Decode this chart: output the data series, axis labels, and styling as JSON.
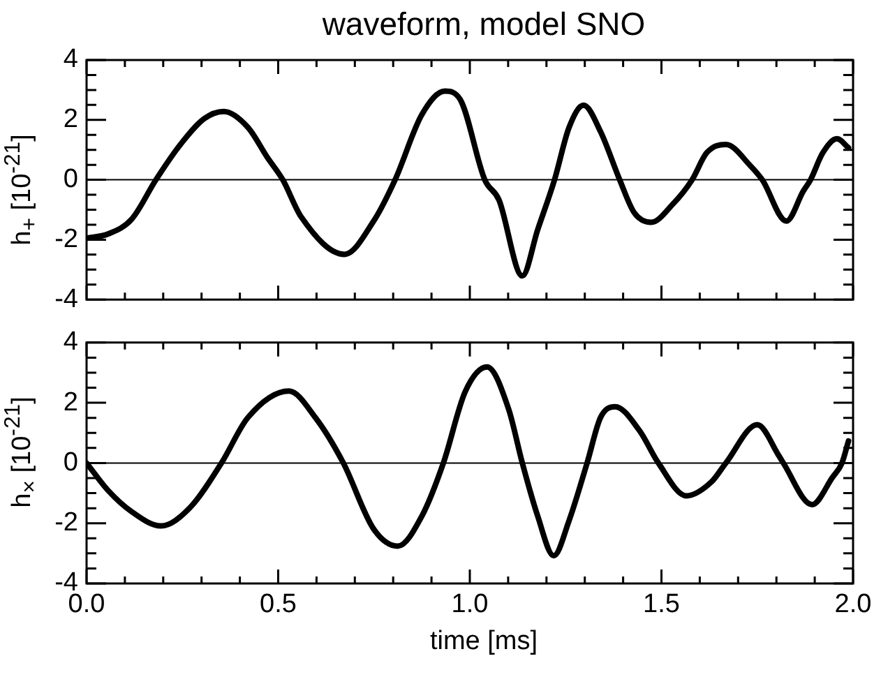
{
  "chart_data": [
    {
      "type": "line",
      "title": "waveform, model SNO",
      "ylabel": "h$_{+}$ [10$^{-21}$]",
      "tick_labels": "y",
      "x": [
        0,
        0.056,
        0.118,
        0.181,
        0.245,
        0.307,
        0.358,
        0.421,
        0.471,
        0.512,
        0.56,
        0.673,
        0.749,
        0.805,
        0.875,
        0.935,
        0.975,
        1.039,
        1.076,
        1.137,
        1.177,
        1.221,
        1.259,
        1.297,
        1.341,
        1.391,
        1.429,
        1.473,
        1.53,
        1.58,
        1.618,
        1.668,
        1.732,
        1.763,
        1.826,
        1.87,
        1.889,
        1.921,
        1.958,
        1.988
      ],
      "values": [
        -1.95,
        -1.81,
        -1.31,
        0,
        1.18,
        2.04,
        2.28,
        1.75,
        0.76,
        0,
        -1.24,
        -2.49,
        -1.38,
        0,
        2.18,
        2.96,
        2.68,
        0,
        -0.67,
        -3.21,
        -1.67,
        0,
        1.75,
        2.49,
        1.61,
        0,
        -1.1,
        -1.42,
        -0.81,
        0,
        0.9,
        1.18,
        0.47,
        0,
        -1.38,
        -0.38,
        0,
        0.9,
        1.37,
        1.07
      ],
      "color": "#000000",
      "grid": false,
      "legend": false,
      "xlim": [
        0,
        2
      ],
      "ylim": [
        -4,
        4
      ],
      "xticks": [
        0,
        {
          "value": 0.1,
          "label": null
        },
        {
          "value": 0.2,
          "label": null
        },
        {
          "value": 0.3,
          "label": null
        },
        {
          "value": 0.4,
          "label": null
        },
        0.5,
        {
          "value": 0.6,
          "label": null
        },
        {
          "value": 0.7,
          "label": null
        },
        {
          "value": 0.8,
          "label": null
        },
        {
          "value": 0.9,
          "label": null
        },
        1,
        {
          "value": 1.1,
          "label": null
        },
        {
          "value": 1.2,
          "label": null
        },
        {
          "value": 1.3,
          "label": null
        },
        {
          "value": 1.4,
          "label": null
        },
        1.5,
        {
          "value": 1.6,
          "label": null
        },
        {
          "value": 1.7,
          "label": null
        },
        {
          "value": 1.8,
          "label": null
        },
        {
          "value": 1.9,
          "label": null
        },
        2
      ],
      "yticks": [
        -4,
        {
          "value": -3.5,
          "label": null
        },
        {
          "value": -3,
          "label": null
        },
        {
          "value": -2.5,
          "label": null
        },
        -2,
        {
          "value": -1.5,
          "label": null
        },
        {
          "value": -1,
          "label": null
        },
        {
          "value": -0.5,
          "label": null
        },
        0,
        {
          "value": 0.5,
          "label": null
        },
        {
          "value": 1,
          "label": null
        },
        {
          "value": 1.5,
          "label": null
        },
        2,
        {
          "value": 2.5,
          "label": null
        },
        {
          "value": 3,
          "label": null
        },
        {
          "value": 3.5,
          "label": null
        },
        4
      ],
      "ref_lines": [
        {
          "axis": "y",
          "value": 0
        }
      ]
    },
    {
      "type": "line",
      "xlabel": "time [ms]",
      "ylabel": "h$_{×}$ [10$^{-21}$]",
      "x": [
        0,
        0.056,
        0.118,
        0.194,
        0.27,
        0.352,
        0.421,
        0.528,
        0.597,
        0.67,
        0.749,
        0.812,
        0.875,
        0.931,
        0.988,
        1.045,
        1.101,
        1.137,
        1.177,
        1.219,
        1.259,
        1.306,
        1.341,
        1.379,
        1.442,
        1.492,
        1.565,
        1.631,
        1.668,
        1.75,
        1.807,
        1.818,
        1.893,
        1.946,
        1.971,
        1.988
      ],
      "values": [
        0,
        -0.91,
        -1.62,
        -2.09,
        -1.48,
        0,
        1.51,
        2.39,
        1.51,
        0,
        -2.19,
        -2.76,
        -1.76,
        0,
        2.37,
        3.19,
        1.8,
        0,
        -1.76,
        -3.08,
        -1.91,
        0,
        1.51,
        1.87,
        1.09,
        0,
        -1.09,
        -0.62,
        0,
        1.27,
        0.23,
        0,
        -1.38,
        -0.48,
        0,
        0.73
      ],
      "color": "#000000",
      "grid": false,
      "legend": false,
      "xlim": [
        0,
        2
      ],
      "ylim": [
        -4,
        4
      ],
      "xticks": [
        {
          "value": 0,
          "label": "0.0"
        },
        {
          "value": 0.1,
          "label": null
        },
        {
          "value": 0.2,
          "label": null
        },
        {
          "value": 0.3,
          "label": null
        },
        {
          "value": 0.4,
          "label": null
        },
        {
          "value": 0.5,
          "label": "0.5"
        },
        {
          "value": 0.6,
          "label": null
        },
        {
          "value": 0.7,
          "label": null
        },
        {
          "value": 0.8,
          "label": null
        },
        {
          "value": 0.9,
          "label": null
        },
        {
          "value": 1,
          "label": "1.0"
        },
        {
          "value": 1.1,
          "label": null
        },
        {
          "value": 1.2,
          "label": null
        },
        {
          "value": 1.3,
          "label": null
        },
        {
          "value": 1.4,
          "label": null
        },
        {
          "value": 1.5,
          "label": "1.5"
        },
        {
          "value": 1.6,
          "label": null
        },
        {
          "value": 1.7,
          "label": null
        },
        {
          "value": 1.8,
          "label": null
        },
        {
          "value": 1.9,
          "label": null
        },
        {
          "value": 2,
          "label": "2.0"
        }
      ],
      "yticks": [
        -4,
        {
          "value": -3.5,
          "label": null
        },
        {
          "value": -3,
          "label": null
        },
        {
          "value": -2.5,
          "label": null
        },
        -2,
        {
          "value": -1.5,
          "label": null
        },
        {
          "value": -1,
          "label": null
        },
        {
          "value": -0.5,
          "label": null
        },
        0,
        {
          "value": 0.5,
          "label": null
        },
        {
          "value": 1,
          "label": null
        },
        {
          "value": 1.5,
          "label": null
        },
        2,
        {
          "value": 2.5,
          "label": null
        },
        {
          "value": 3,
          "label": null
        },
        {
          "value": 3.5,
          "label": null
        },
        4
      ],
      "ref_lines": [
        {
          "axis": "y",
          "value": 0
        }
      ]
    }
  ]
}
